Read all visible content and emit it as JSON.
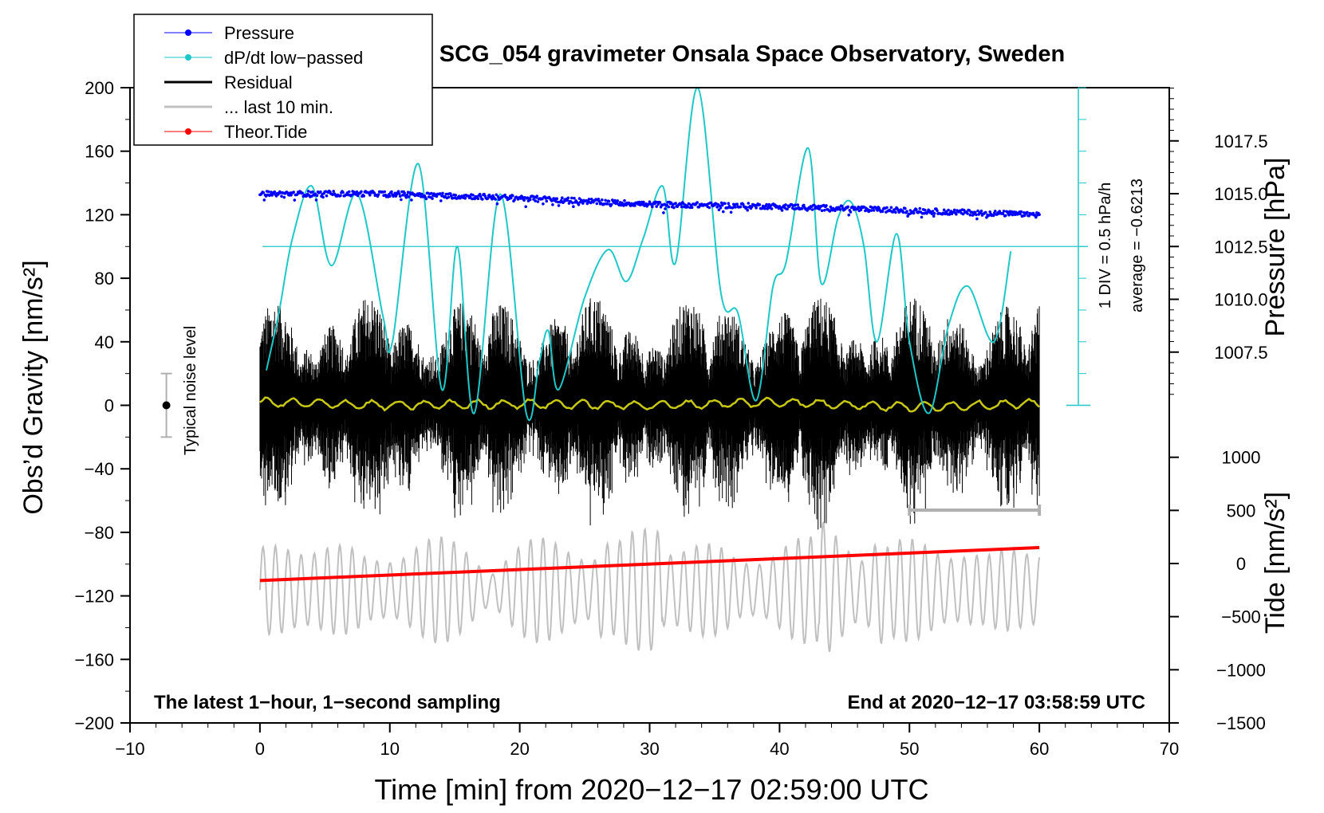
{
  "chart_data": {
    "type": "line",
    "title": "SCG_054 gravimeter Onsala Space Observatory, Sweden",
    "xlabel": "Time [min] from 2020−12−17 02:59:00 UTC",
    "ylabel_left": "Obs’d Gravity [nm/s²]",
    "ylabel_right_pressure": "Pressure [hPa]",
    "ylabel_right_tide": "Tide [nm/s²]",
    "xlim": [
      -10,
      70
    ],
    "ylim": [
      -200,
      200
    ],
    "x_ticks": [
      -10,
      0,
      10,
      20,
      30,
      40,
      50,
      60,
      70
    ],
    "x_tick_labels": [
      "−10",
      "0",
      "10",
      "20",
      "30",
      "40",
      "50",
      "60",
      "70"
    ],
    "y_ticks": [
      200,
      160,
      120,
      80,
      40,
      0,
      -40,
      -80,
      -120,
      -160,
      -200
    ],
    "y_tick_labels": [
      "200",
      "160",
      "120",
      "80",
      "40",
      "0",
      "−40",
      "−80",
      "−120",
      "−160",
      "−200"
    ],
    "pressure_ticks": [
      1017.5,
      1015.0,
      1012.5,
      1010.0,
      1007.5
    ],
    "pressure_tick_labels": [
      "1017.5",
      "1015.0",
      "1012.5",
      "1010.0",
      "1007.5"
    ],
    "pressure_range": [
      1005.0,
      1020.0
    ],
    "tide_ticks": [
      1000,
      500,
      0,
      -500,
      -1000,
      -1500
    ],
    "tide_tick_labels": [
      "1000",
      "500",
      "0",
      "−500",
      "−1000",
      "−1500"
    ],
    "tide_range": [
      -1500,
      1500
    ],
    "legend": [
      {
        "label": "Pressure",
        "color": "#0000ff",
        "marker": true
      },
      {
        "label": "dP/dt low−passed",
        "color": "#1ec8c8",
        "marker": true
      },
      {
        "label": "Residual",
        "color": "#000000",
        "marker": false
      },
      {
        "label": "... last 10 min.",
        "color": "#c0c0c0",
        "marker": false
      },
      {
        "label": "Theor.Tide",
        "color": "#ff0000",
        "marker": true
      }
    ],
    "annotations": {
      "bottom_left": "The latest 1−hour, 1−second sampling",
      "bottom_right": "End at 2020−12−17 03:58:59 UTC",
      "noise_label": "Typical noise level",
      "div_label": "1 DIV = 0.5 hPa/h",
      "average_label": "average = −0.6213"
    },
    "series": [
      {
        "name": "Pressure",
        "axis": "pressure",
        "color": "#0000ff",
        "x": [
          0,
          10,
          20,
          30,
          40,
          50,
          60
        ],
        "values": [
          1015.0,
          1015.0,
          1014.8,
          1014.5,
          1014.4,
          1014.2,
          1014.0
        ]
      },
      {
        "name": "dP/dt low-passed",
        "axis": "left",
        "color": "#1ec8c8",
        "x": [
          0.5,
          1.5,
          2.5,
          4.0,
          5.5,
          7.5,
          9.5,
          10.2,
          12.2,
          14.0,
          15.2,
          16.5,
          18.5,
          20.5,
          21.5,
          22.2,
          23.0,
          25.0,
          26.8,
          28.2,
          29.5,
          31.0,
          32.0,
          33.7,
          35.5,
          36.8,
          38.2,
          39.5,
          40.5,
          42.2,
          43.2,
          44.5,
          45.5,
          46.5,
          47.5,
          49.0,
          50.0,
          51.5,
          53.0,
          54.5,
          56.5,
          57.8
        ],
        "values": [
          22,
          60,
          105,
          138,
          88,
          133,
          55,
          40,
          152,
          10,
          100,
          -5,
          133,
          -5,
          27,
          47,
          10,
          68,
          98,
          78,
          105,
          138,
          90,
          200,
          70,
          58,
          3,
          75,
          90,
          162,
          77,
          118,
          128,
          100,
          40,
          108,
          40,
          -5,
          50,
          75,
          40,
          97
        ]
      },
      {
        "name": "Residual",
        "axis": "left",
        "color": "#000000",
        "x": [
          0,
          60
        ],
        "range_envelope": [
          -70,
          70
        ]
      },
      {
        "name": "Residual smoothed",
        "axis": "left",
        "color": "#c8c814",
        "x": [
          0,
          10,
          20,
          30,
          40,
          50,
          60
        ],
        "values": [
          2,
          0,
          1,
          0,
          2,
          -1,
          1
        ]
      },
      {
        "name": "... last 10 min.",
        "axis": "tide",
        "color": "#c0c0c0",
        "x": [
          0,
          60
        ],
        "range_envelope": [
          -1500,
          1000
        ]
      },
      {
        "name": "Theor.Tide",
        "axis": "tide",
        "color": "#ff0000",
        "x": [
          0,
          60
        ],
        "values": [
          -160,
          150
        ]
      }
    ],
    "scale_bar": {
      "x": [
        50,
        60
      ],
      "y": -66
    }
  }
}
